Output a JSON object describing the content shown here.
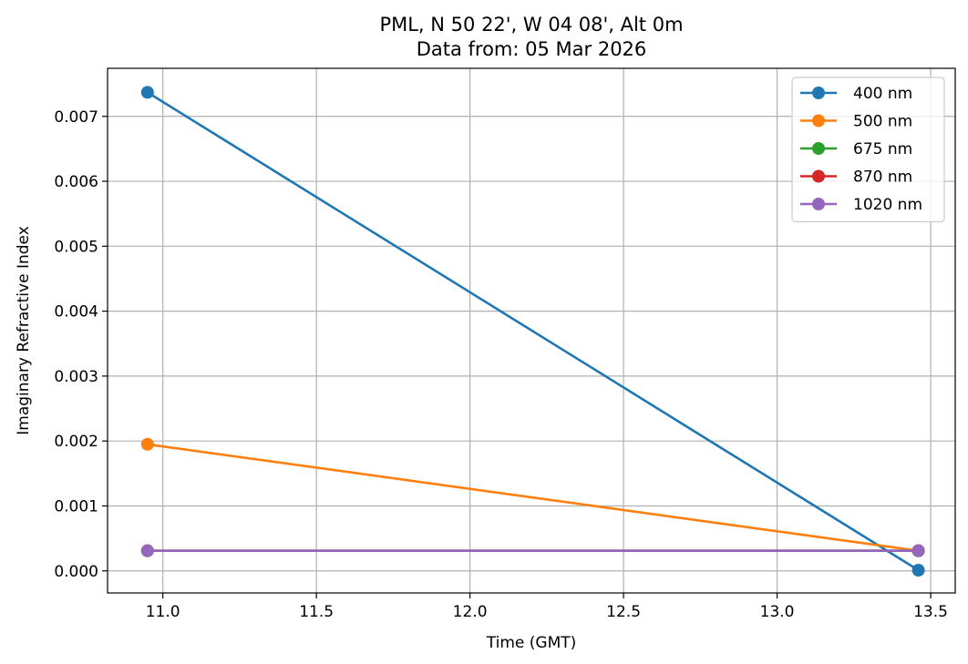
{
  "chart_data": {
    "type": "line",
    "title": "PML, N 50 22', W 04 08', Alt 0m",
    "subtitle": "Data from: 05 Mar 2026",
    "xlabel": "Time (GMT)",
    "ylabel": "Imaginary Refractive Index",
    "xlim": [
      10.82,
      13.58
    ],
    "ylim": [
      -0.00034,
      0.00774
    ],
    "xticks": [
      11.0,
      11.5,
      12.0,
      12.5,
      13.0,
      13.5
    ],
    "xtick_labels": [
      "11.0",
      "11.5",
      "12.0",
      "12.5",
      "13.0",
      "13.5"
    ],
    "yticks": [
      0.0,
      0.001,
      0.002,
      0.003,
      0.004,
      0.005,
      0.006,
      0.007
    ],
    "ytick_labels": [
      "0.000",
      "0.001",
      "0.002",
      "0.003",
      "0.004",
      "0.005",
      "0.006",
      "0.007"
    ],
    "grid": true,
    "legend_position": "top-right",
    "x": [
      10.95,
      13.46
    ],
    "series": [
      {
        "name": "400 nm",
        "color": "#1f77b4",
        "values": [
          0.00737,
          1e-05
        ]
      },
      {
        "name": "500 nm",
        "color": "#ff7f0e",
        "values": [
          0.00195,
          0.00031
        ]
      },
      {
        "name": "675 nm",
        "color": "#2ca02c",
        "values": [
          0.00031,
          0.00031
        ]
      },
      {
        "name": "870 nm",
        "color": "#d62728",
        "values": [
          0.00031,
          0.00031
        ]
      },
      {
        "name": "1020 nm",
        "color": "#9467bd",
        "values": [
          0.00031,
          0.00031
        ]
      }
    ]
  }
}
